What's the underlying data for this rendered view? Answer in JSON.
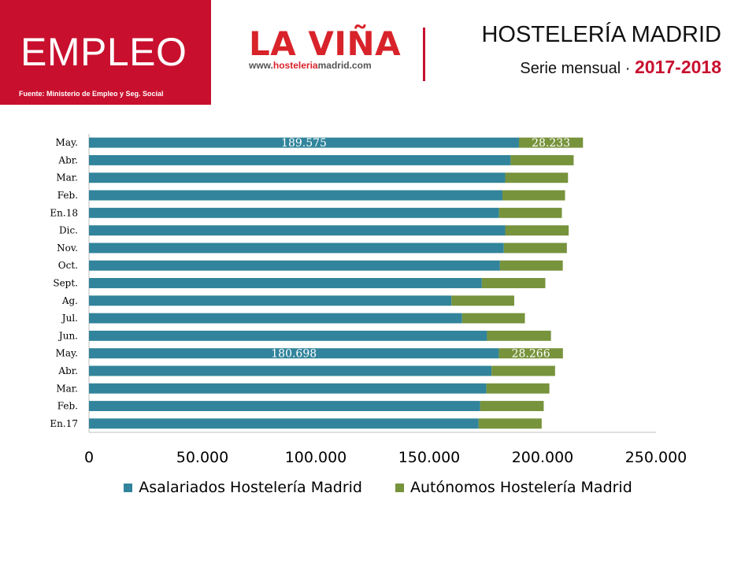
{
  "header": {
    "section_title": "EMPLEO",
    "source": "Fuente: Ministerio de Empleo y Seg. Social",
    "logo_text": "LA VIÑA",
    "logo_url_prefix": "www.",
    "logo_url_highlight": "hosteleria",
    "logo_url_suffix": "madrid.com",
    "title": "HOSTELERÍA MADRID",
    "subtitle_prefix": "Serie mensual · ",
    "subtitle_years": "2017-2018"
  },
  "colors": {
    "brand_red": "#c8102e",
    "asalariados": "#31849b",
    "autonomos": "#77933c"
  },
  "chart_data": {
    "type": "bar",
    "orientation": "horizontal",
    "stacked": true,
    "categories": [
      "En.17",
      "Feb.",
      "Mar.",
      "Abr.",
      "May.",
      "Jun.",
      "Jul.",
      "Ag.",
      "Sept.",
      "Oct.",
      "Nov.",
      "Dic.",
      "En.18",
      "Feb.",
      "Mar.",
      "Abr.",
      "May."
    ],
    "series": [
      {
        "name": "Asalariados Hostelería Madrid",
        "color": "#31849b",
        "values": [
          171800,
          172500,
          175200,
          177500,
          180698,
          175500,
          164500,
          159800,
          173200,
          181200,
          182900,
          183500,
          180800,
          182300,
          183500,
          185900,
          189575
        ]
      },
      {
        "name": "Autónomos Hostelería Madrid",
        "color": "#77933c",
        "values": [
          27800,
          28000,
          27800,
          28000,
          28266,
          28200,
          27700,
          27700,
          28000,
          27700,
          27800,
          28000,
          27700,
          27600,
          27700,
          27800,
          28233
        ]
      }
    ],
    "data_labels": [
      {
        "category_index": 4,
        "values": [
          "180.698",
          "28.266"
        ]
      },
      {
        "category_index": 16,
        "values": [
          "189.575",
          "28.233"
        ]
      }
    ],
    "x_ticks": [
      0,
      50000,
      100000,
      150000,
      200000,
      250000
    ],
    "x_tick_labels": [
      "0",
      "50.000",
      "100.000",
      "150.000",
      "200.000",
      "250.000"
    ],
    "xlim": [
      0,
      250000
    ],
    "grid": false,
    "legend_position": "bottom"
  }
}
